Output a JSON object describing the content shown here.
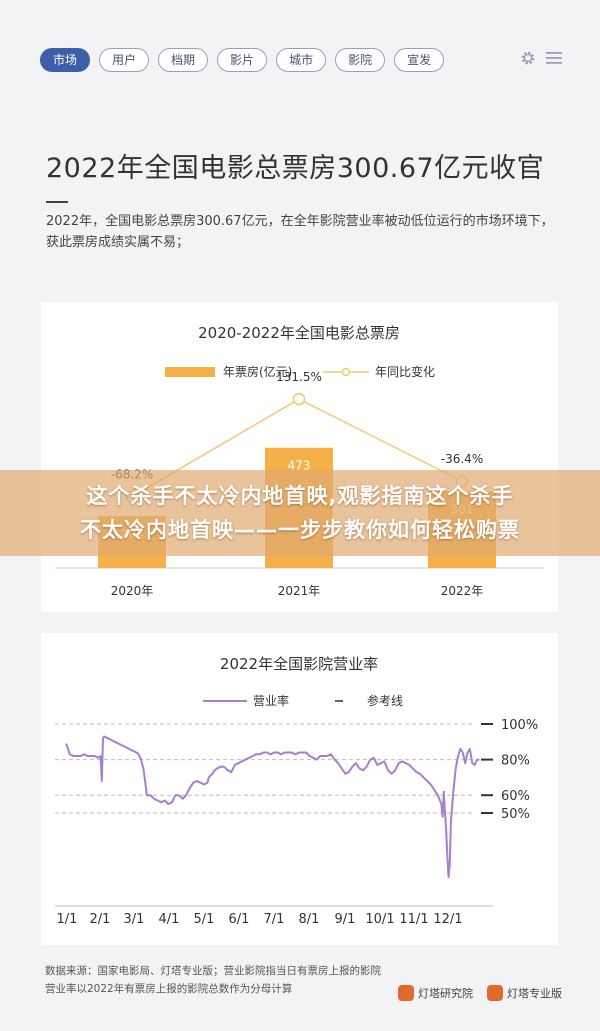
{
  "tabs": [
    "市场",
    "用户",
    "档期",
    "影片",
    "城市",
    "影院",
    "宣发"
  ],
  "active_tab": "市场",
  "tools": {
    "settings_icon": "gear-icon",
    "menu_icon": "menu-icon"
  },
  "article": {
    "title": "2022年全国电影总票房300.67亿元收官",
    "intro": "2022年，全国电影总票房300.67亿元，在全年影院营业率被动低位运行的市场环境下，获此票房成绩实属不易；"
  },
  "chart_data": [
    {
      "type": "bar",
      "title": "2020-2022年全国电影总票房",
      "categories": [
        "2020年",
        "2021年",
        "2022年"
      ],
      "series": [
        {
          "name": "年票房(亿元)",
          "values": [
            204,
            473,
            301
          ],
          "color": "#f5b04a",
          "data_labels": [
            "204",
            "473",
            "301"
          ]
        },
        {
          "name": "年同比变化",
          "type": "line",
          "values": [
            -68.2,
            131.5,
            -36.4
          ],
          "data_labels": [
            "-68.2%",
            "131.5%",
            "-36.4%"
          ],
          "color": "#f3c873"
        }
      ],
      "ylim": [
        0,
        700
      ]
    },
    {
      "type": "line",
      "title": "2022年全国影院营业率",
      "x_ticks": [
        "1/1",
        "2/1",
        "3/1",
        "4/1",
        "5/1",
        "6/1",
        "7/1",
        "8/1",
        "9/1",
        "10/1",
        "11/1",
        "12/1"
      ],
      "ylim": [
        0,
        105
      ],
      "series": [
        {
          "name": "营业率",
          "color": "#a67fcf",
          "points": [
            [
              1,
              89
            ],
            [
              4,
              83
            ],
            [
              7,
              82
            ],
            [
              10,
              82
            ],
            [
              13,
              82
            ],
            [
              16,
              83
            ],
            [
              19,
              82
            ],
            [
              22,
              82
            ],
            [
              25,
              82
            ],
            [
              28,
              81
            ],
            [
              30,
              82
            ],
            [
              31,
              68
            ],
            [
              32,
              92
            ],
            [
              33,
              93
            ],
            [
              36,
              92
            ],
            [
              39,
              91
            ],
            [
              42,
              90
            ],
            [
              45,
              89
            ],
            [
              48,
              88
            ],
            [
              51,
              87
            ],
            [
              54,
              86
            ],
            [
              57,
              85
            ],
            [
              60,
              84
            ],
            [
              62,
              83
            ],
            [
              64,
              80
            ],
            [
              66,
              75
            ],
            [
              67,
              70
            ],
            [
              69,
              60
            ],
            [
              72,
              60
            ],
            [
              75,
              58
            ],
            [
              78,
              57
            ],
            [
              81,
              56
            ],
            [
              84,
              57
            ],
            [
              87,
              55
            ],
            [
              90,
              56
            ],
            [
              93,
              60
            ],
            [
              96,
              60
            ],
            [
              99,
              58
            ],
            [
              102,
              60
            ],
            [
              105,
              64
            ],
            [
              108,
              67
            ],
            [
              111,
              68
            ],
            [
              114,
              67
            ],
            [
              117,
              66
            ],
            [
              120,
              67
            ],
            [
              121,
              70
            ],
            [
              124,
              72
            ],
            [
              126,
              74
            ],
            [
              128,
              75
            ],
            [
              131,
              76
            ],
            [
              134,
              76
            ],
            [
              137,
              74
            ],
            [
              140,
              73
            ],
            [
              143,
              77
            ],
            [
              146,
              78
            ],
            [
              149,
              79
            ],
            [
              152,
              80
            ],
            [
              155,
              81
            ],
            [
              158,
              82
            ],
            [
              161,
              83
            ],
            [
              164,
              83
            ],
            [
              167,
              84
            ],
            [
              170,
              84
            ],
            [
              173,
              83
            ],
            [
              176,
              84
            ],
            [
              179,
              84
            ],
            [
              182,
              83
            ],
            [
              185,
              84
            ],
            [
              188,
              84
            ],
            [
              191,
              84
            ],
            [
              194,
              83
            ],
            [
              197,
              84
            ],
            [
              200,
              84
            ],
            [
              203,
              84
            ],
            [
              206,
              82
            ],
            [
              209,
              81
            ],
            [
              212,
              80
            ],
            [
              215,
              82
            ],
            [
              218,
              82
            ],
            [
              221,
              82
            ],
            [
              224,
              83
            ],
            [
              227,
              80
            ],
            [
              230,
              78
            ],
            [
              233,
              75
            ],
            [
              236,
              72
            ],
            [
              239,
              73
            ],
            [
              242,
              76
            ],
            [
              245,
              78
            ],
            [
              248,
              75
            ],
            [
              251,
              74
            ],
            [
              254,
              76
            ],
            [
              257,
              80
            ],
            [
              260,
              81
            ],
            [
              263,
              77
            ],
            [
              266,
              78
            ],
            [
              269,
              79
            ],
            [
              272,
              74
            ],
            [
              275,
              72
            ],
            [
              278,
              74
            ],
            [
              281,
              78
            ],
            [
              284,
              79
            ],
            [
              287,
              78
            ],
            [
              290,
              77
            ],
            [
              293,
              75
            ],
            [
              296,
              73
            ],
            [
              299,
              72
            ],
            [
              302,
              70
            ],
            [
              305,
              68
            ],
            [
              308,
              66
            ],
            [
              311,
              63
            ],
            [
              314,
              60
            ],
            [
              317,
              55
            ],
            [
              318,
              48
            ],
            [
              319,
              62
            ],
            [
              320,
              50
            ],
            [
              321,
              40
            ],
            [
              322,
              25
            ],
            [
              323,
              14
            ],
            [
              324,
              22
            ],
            [
              325,
              45
            ],
            [
              327,
              62
            ],
            [
              329,
              75
            ],
            [
              331,
              82
            ],
            [
              333,
              86
            ],
            [
              335,
              84
            ],
            [
              337,
              78
            ],
            [
              339,
              84
            ],
            [
              341,
              86
            ],
            [
              343,
              78
            ],
            [
              345,
              77
            ],
            [
              347,
              80
            ],
            [
              349,
              80
            ]
          ]
        }
      ],
      "reference_lines": [
        {
          "label": "100%",
          "value": 100
        },
        {
          "label": "80%",
          "value": 80
        },
        {
          "label": "60%",
          "value": 60
        },
        {
          "label": "50%",
          "value": 50
        }
      ],
      "reference_legend": "参考线"
    }
  ],
  "overlay_banner": {
    "line1": "这个杀手不太冷内地首映,观影指南这个杀手",
    "line2": "不太冷内地首映——一步步教你如何轻松购票"
  },
  "footnote": {
    "line1": "数据来源：国家电影局、灯塔专业版；营业影院指当日有票房上报的影院",
    "line2": "营业率以2022年有票房上报的影院总数作为分母计算"
  },
  "logos": [
    "灯塔研究院",
    "灯塔专业版"
  ]
}
